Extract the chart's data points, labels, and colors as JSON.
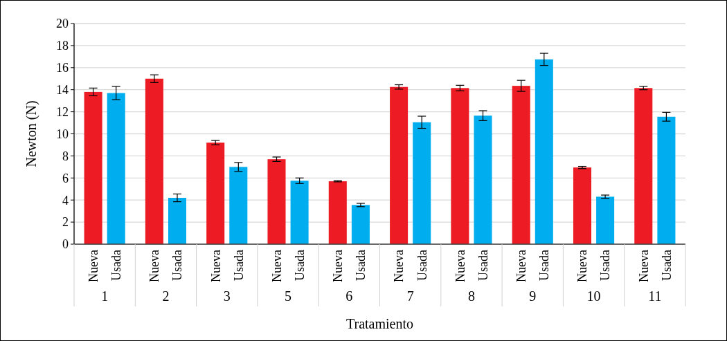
{
  "chart_data": {
    "type": "bar",
    "xlabel": "Tratamiento",
    "ylabel": "Newton (N)",
    "categories": [
      "1",
      "2",
      "3",
      "5",
      "6",
      "7",
      "8",
      "9",
      "10",
      "11"
    ],
    "series": [
      {
        "name": "Nueva",
        "color": "#ed1c24",
        "values": [
          13.8,
          15.0,
          9.2,
          7.7,
          5.7,
          14.25,
          14.15,
          14.35,
          6.95,
          14.15
        ],
        "errors": [
          0.35,
          0.35,
          0.2,
          0.2,
          0.05,
          0.2,
          0.25,
          0.5,
          0.1,
          0.15
        ]
      },
      {
        "name": "Usada",
        "color": "#00aeef",
        "values": [
          13.7,
          4.2,
          7.0,
          5.75,
          3.55,
          11.05,
          11.65,
          16.75,
          4.3,
          11.55
        ],
        "errors": [
          0.6,
          0.35,
          0.4,
          0.25,
          0.15,
          0.55,
          0.45,
          0.55,
          0.15,
          0.4
        ]
      }
    ],
    "ylim": [
      0,
      20
    ],
    "yticks": [
      0,
      2,
      4,
      6,
      8,
      10,
      12,
      14,
      16,
      18,
      20
    ],
    "grid": "y"
  }
}
